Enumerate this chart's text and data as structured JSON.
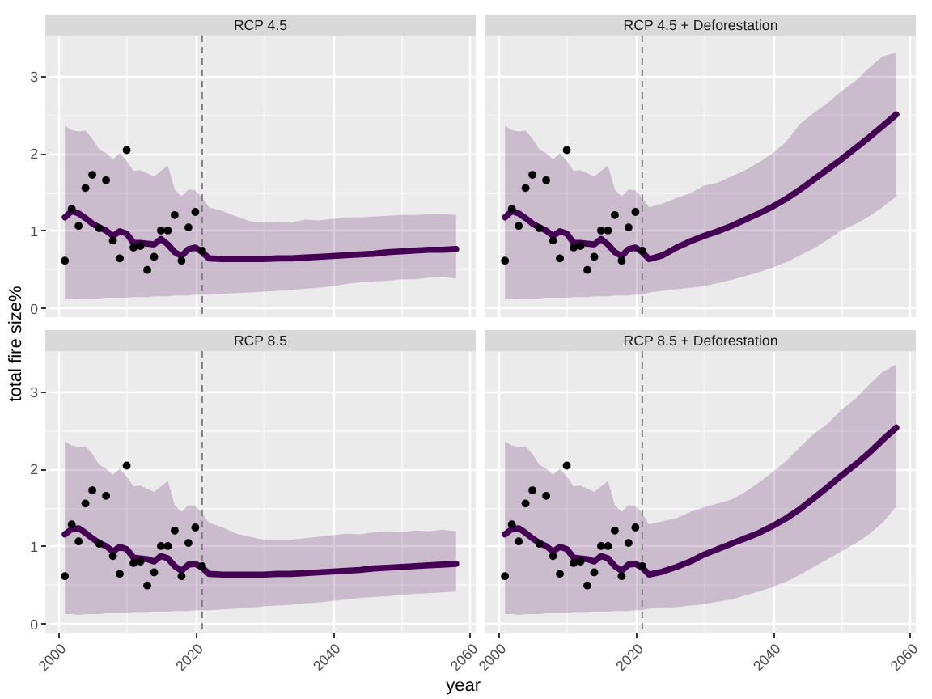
{
  "chart_data": [
    {
      "type": "line",
      "title": "RCP 4.5",
      "ylabel": "total fire size%",
      "xlim": [
        1998.15,
        2060.85
      ],
      "xticks": [
        2000,
        {
          "value": 2010,
          "label": null
        },
        2020,
        {
          "value": 2030,
          "label": null
        },
        2040,
        {
          "value": 2050,
          "label": null
        },
        2060
      ],
      "ylim": [
        -0.12,
        3.52
      ],
      "yticks": [
        0,
        {
          "value": 0.5,
          "label": null
        },
        1,
        {
          "value": 1.5,
          "label": null
        },
        2,
        {
          "value": 2.5,
          "label": null
        },
        3
      ],
      "grid": true,
      "tick_labels": "y",
      "ref_lines": [
        {
          "axis": "x",
          "value": 2021,
          "color": "#808080",
          "line_style": "dashed"
        }
      ],
      "series": [
        {
          "type": "line",
          "color": "#440154",
          "x": [
            2001,
            2002,
            2003,
            2004,
            2005,
            2006,
            2007,
            2008,
            2009,
            2010,
            2011,
            2012,
            2013,
            2014,
            2015,
            2016,
            2017,
            2018,
            2019,
            2020,
            2021,
            2022,
            2024,
            2026,
            2028,
            2030,
            2032,
            2034,
            2036,
            2038,
            2040,
            2042,
            2044,
            2046,
            2048,
            2050,
            2052,
            2054,
            2056,
            2058
          ],
          "values": [
            1.17,
            1.25,
            1.22,
            1.16,
            1.09,
            1.04,
            1.0,
            0.93,
            0.99,
            0.96,
            0.84,
            0.84,
            0.83,
            0.82,
            0.89,
            0.82,
            0.72,
            0.67,
            0.76,
            0.78,
            0.72,
            0.64,
            0.63,
            0.63,
            0.63,
            0.63,
            0.64,
            0.64,
            0.65,
            0.66,
            0.67,
            0.68,
            0.69,
            0.7,
            0.72,
            0.73,
            0.74,
            0.75,
            0.75,
            0.76
          ],
          "lower": [
            0.12,
            0.12,
            0.11,
            0.12,
            0.12,
            0.12,
            0.13,
            0.13,
            0.13,
            0.13,
            0.14,
            0.14,
            0.14,
            0.15,
            0.15,
            0.15,
            0.16,
            0.16,
            0.16,
            0.17,
            0.17,
            0.17,
            0.18,
            0.19,
            0.2,
            0.21,
            0.22,
            0.23,
            0.25,
            0.26,
            0.28,
            0.31,
            0.33,
            0.34,
            0.35,
            0.37,
            0.37,
            0.39,
            0.4,
            0.38
          ],
          "upper": [
            2.35,
            2.3,
            2.28,
            2.29,
            2.19,
            2.05,
            2.0,
            1.92,
            2.0,
            1.9,
            1.77,
            1.78,
            1.74,
            1.7,
            1.77,
            1.84,
            1.53,
            1.44,
            1.53,
            1.52,
            1.42,
            1.3,
            1.25,
            1.18,
            1.12,
            1.1,
            1.11,
            1.1,
            1.14,
            1.13,
            1.15,
            1.17,
            1.17,
            1.18,
            1.19,
            1.2,
            1.2,
            1.21,
            1.21,
            1.2
          ]
        },
        {
          "type": "scatter",
          "color": "#000000",
          "marker": "circle",
          "x": [
            2001,
            2002,
            2003,
            2004,
            2005,
            2006,
            2007,
            2008,
            2009,
            2010,
            2011,
            2012,
            2013,
            2014,
            2015,
            2016,
            2017,
            2018,
            2019,
            2020,
            2021
          ],
          "values": [
            0.61,
            1.28,
            1.06,
            1.55,
            1.72,
            1.03,
            1.65,
            0.87,
            0.64,
            2.04,
            0.78,
            0.8,
            0.49,
            0.66,
            1.0,
            1.0,
            1.2,
            0.61,
            1.04,
            1.24,
            0.74
          ]
        }
      ]
    },
    {
      "type": "line",
      "title": "RCP 4.5 + Deforestation",
      "xlim": [
        1998.15,
        2060.85
      ],
      "xticks": [
        2000,
        {
          "value": 2010,
          "label": null
        },
        2020,
        {
          "value": 2030,
          "label": null
        },
        2040,
        {
          "value": 2050,
          "label": null
        },
        2060
      ],
      "ylim": [
        -0.12,
        3.52
      ],
      "yticks": [
        0,
        {
          "value": 0.5,
          "label": null
        },
        1,
        {
          "value": 1.5,
          "label": null
        },
        2,
        {
          "value": 2.5,
          "label": null
        },
        3
      ],
      "grid": true,
      "tick_labels": false,
      "ref_lines": [
        {
          "axis": "x",
          "value": 2021,
          "color": "#808080",
          "line_style": "dashed"
        }
      ],
      "series": [
        {
          "type": "line",
          "color": "#440154",
          "x": [
            2001,
            2002,
            2003,
            2004,
            2005,
            2006,
            2007,
            2008,
            2009,
            2010,
            2011,
            2012,
            2013,
            2014,
            2015,
            2016,
            2017,
            2018,
            2019,
            2020,
            2021,
            2022,
            2024,
            2026,
            2028,
            2030,
            2032,
            2034,
            2036,
            2038,
            2040,
            2042,
            2044,
            2046,
            2048,
            2050,
            2052,
            2054,
            2056,
            2058
          ],
          "values": [
            1.17,
            1.25,
            1.22,
            1.16,
            1.09,
            1.04,
            1.0,
            0.93,
            0.99,
            0.96,
            0.84,
            0.84,
            0.83,
            0.82,
            0.89,
            0.82,
            0.72,
            0.67,
            0.76,
            0.78,
            0.72,
            0.63,
            0.68,
            0.78,
            0.86,
            0.93,
            0.99,
            1.06,
            1.14,
            1.22,
            1.31,
            1.41,
            1.53,
            1.66,
            1.79,
            1.92,
            2.06,
            2.2,
            2.35,
            2.5
          ],
          "lower": [
            0.12,
            0.12,
            0.11,
            0.12,
            0.12,
            0.12,
            0.13,
            0.13,
            0.13,
            0.13,
            0.14,
            0.14,
            0.14,
            0.15,
            0.15,
            0.15,
            0.16,
            0.16,
            0.16,
            0.17,
            0.17,
            0.2,
            0.22,
            0.24,
            0.26,
            0.28,
            0.32,
            0.36,
            0.41,
            0.46,
            0.52,
            0.59,
            0.68,
            0.77,
            0.88,
            1.0,
            1.08,
            1.18,
            1.3,
            1.44
          ],
          "upper": [
            2.35,
            2.3,
            2.28,
            2.29,
            2.19,
            2.05,
            2.0,
            1.92,
            2.0,
            1.9,
            1.77,
            1.78,
            1.74,
            1.7,
            1.77,
            1.84,
            1.53,
            1.44,
            1.53,
            1.52,
            1.42,
            1.3,
            1.35,
            1.42,
            1.48,
            1.58,
            1.62,
            1.7,
            1.78,
            1.88,
            2.0,
            2.15,
            2.38,
            2.52,
            2.65,
            2.8,
            2.93,
            3.1,
            3.25,
            3.3
          ]
        },
        {
          "type": "scatter",
          "color": "#000000",
          "marker": "circle",
          "x": [
            2001,
            2002,
            2003,
            2004,
            2005,
            2006,
            2007,
            2008,
            2009,
            2010,
            2011,
            2012,
            2013,
            2014,
            2015,
            2016,
            2017,
            2018,
            2019,
            2020,
            2021
          ],
          "values": [
            0.61,
            1.28,
            1.06,
            1.55,
            1.72,
            1.03,
            1.65,
            0.87,
            0.64,
            2.04,
            0.78,
            0.8,
            0.49,
            0.66,
            1.0,
            1.0,
            1.2,
            0.61,
            1.04,
            1.24,
            0.74
          ]
        }
      ]
    },
    {
      "type": "line",
      "title": "RCP 8.5",
      "xlabel": "year",
      "xlim": [
        1998.15,
        2060.85
      ],
      "xticks": [
        2000,
        {
          "value": 2010,
          "label": null
        },
        2020,
        {
          "value": 2030,
          "label": null
        },
        2040,
        {
          "value": 2050,
          "label": null
        },
        2060
      ],
      "ylim": [
        -0.12,
        3.52
      ],
      "yticks": [
        0,
        {
          "value": 0.5,
          "label": null
        },
        1,
        {
          "value": 1.5,
          "label": null
        },
        2,
        {
          "value": 2.5,
          "label": null
        },
        3
      ],
      "grid": true,
      "ref_lines": [
        {
          "axis": "x",
          "value": 2021,
          "color": "#808080",
          "line_style": "dashed"
        }
      ],
      "series": [
        {
          "type": "line",
          "color": "#440154",
          "x": [
            2001,
            2002,
            2003,
            2004,
            2005,
            2006,
            2007,
            2008,
            2009,
            2010,
            2011,
            2012,
            2013,
            2014,
            2015,
            2016,
            2017,
            2018,
            2019,
            2020,
            2021,
            2022,
            2024,
            2026,
            2028,
            2030,
            2032,
            2034,
            2036,
            2038,
            2040,
            2042,
            2044,
            2046,
            2048,
            2050,
            2052,
            2054,
            2056,
            2058
          ],
          "values": [
            1.15,
            1.22,
            1.23,
            1.17,
            1.1,
            1.04,
            1.0,
            0.93,
            0.99,
            0.96,
            0.85,
            0.84,
            0.83,
            0.8,
            0.87,
            0.84,
            0.74,
            0.68,
            0.76,
            0.77,
            0.72,
            0.64,
            0.63,
            0.63,
            0.63,
            0.63,
            0.64,
            0.64,
            0.65,
            0.66,
            0.67,
            0.68,
            0.69,
            0.71,
            0.72,
            0.73,
            0.74,
            0.75,
            0.76,
            0.77
          ],
          "lower": [
            0.12,
            0.12,
            0.11,
            0.12,
            0.12,
            0.12,
            0.13,
            0.13,
            0.13,
            0.13,
            0.14,
            0.14,
            0.14,
            0.15,
            0.15,
            0.15,
            0.16,
            0.16,
            0.16,
            0.17,
            0.17,
            0.17,
            0.18,
            0.19,
            0.2,
            0.22,
            0.23,
            0.24,
            0.26,
            0.27,
            0.29,
            0.31,
            0.33,
            0.34,
            0.35,
            0.37,
            0.38,
            0.39,
            0.4,
            0.41
          ],
          "upper": [
            2.35,
            2.3,
            2.28,
            2.29,
            2.19,
            2.05,
            2.0,
            1.92,
            2.0,
            1.9,
            1.77,
            1.78,
            1.74,
            1.7,
            1.77,
            1.84,
            1.53,
            1.44,
            1.53,
            1.52,
            1.42,
            1.3,
            1.24,
            1.16,
            1.12,
            1.08,
            1.08,
            1.08,
            1.1,
            1.12,
            1.14,
            1.16,
            1.15,
            1.18,
            1.19,
            1.18,
            1.2,
            1.19,
            1.21,
            1.19
          ]
        },
        {
          "type": "scatter",
          "color": "#000000",
          "marker": "circle",
          "x": [
            2001,
            2002,
            2003,
            2004,
            2005,
            2006,
            2007,
            2008,
            2009,
            2010,
            2011,
            2012,
            2013,
            2014,
            2015,
            2016,
            2017,
            2018,
            2019,
            2020,
            2021
          ],
          "values": [
            0.61,
            1.28,
            1.06,
            1.55,
            1.72,
            1.03,
            1.65,
            0.87,
            0.64,
            2.04,
            0.78,
            0.8,
            0.49,
            0.66,
            1.0,
            1.0,
            1.2,
            0.61,
            1.04,
            1.24,
            0.74
          ]
        }
      ]
    },
    {
      "type": "line",
      "title": "RCP 8.5 + Deforestation",
      "xlim": [
        1998.15,
        2060.85
      ],
      "xticks": [
        2000,
        {
          "value": 2010,
          "label": null
        },
        2020,
        {
          "value": 2030,
          "label": null
        },
        2040,
        {
          "value": 2050,
          "label": null
        },
        2060
      ],
      "ylim": [
        -0.12,
        3.52
      ],
      "yticks": [
        0,
        {
          "value": 0.5,
          "label": null
        },
        1,
        {
          "value": 1.5,
          "label": null
        },
        2,
        {
          "value": 2.5,
          "label": null
        },
        3
      ],
      "grid": true,
      "tick_labels": "x",
      "ref_lines": [
        {
          "axis": "x",
          "value": 2021,
          "color": "#808080",
          "line_style": "dashed"
        }
      ],
      "series": [
        {
          "type": "line",
          "color": "#440154",
          "x": [
            2001,
            2002,
            2003,
            2004,
            2005,
            2006,
            2007,
            2008,
            2009,
            2010,
            2011,
            2012,
            2013,
            2014,
            2015,
            2016,
            2017,
            2018,
            2019,
            2020,
            2021,
            2022,
            2024,
            2026,
            2028,
            2030,
            2032,
            2034,
            2036,
            2038,
            2040,
            2042,
            2044,
            2046,
            2048,
            2050,
            2052,
            2054,
            2056,
            2058
          ],
          "values": [
            1.15,
            1.22,
            1.23,
            1.17,
            1.1,
            1.04,
            1.0,
            0.93,
            0.99,
            0.96,
            0.85,
            0.84,
            0.83,
            0.8,
            0.87,
            0.84,
            0.74,
            0.68,
            0.76,
            0.77,
            0.72,
            0.63,
            0.67,
            0.73,
            0.8,
            0.89,
            0.96,
            1.03,
            1.1,
            1.17,
            1.26,
            1.36,
            1.48,
            1.62,
            1.76,
            1.91,
            2.05,
            2.2,
            2.37,
            2.53
          ],
          "lower": [
            0.12,
            0.12,
            0.11,
            0.12,
            0.12,
            0.12,
            0.13,
            0.13,
            0.13,
            0.13,
            0.14,
            0.14,
            0.14,
            0.15,
            0.15,
            0.15,
            0.16,
            0.16,
            0.16,
            0.17,
            0.17,
            0.19,
            0.2,
            0.21,
            0.23,
            0.25,
            0.28,
            0.31,
            0.36,
            0.41,
            0.47,
            0.54,
            0.63,
            0.73,
            0.83,
            0.93,
            1.03,
            1.15,
            1.3,
            1.51
          ],
          "upper": [
            2.35,
            2.3,
            2.28,
            2.29,
            2.19,
            2.05,
            2.0,
            1.92,
            2.0,
            1.9,
            1.77,
            1.78,
            1.74,
            1.7,
            1.77,
            1.84,
            1.53,
            1.44,
            1.53,
            1.52,
            1.42,
            1.28,
            1.32,
            1.36,
            1.44,
            1.5,
            1.55,
            1.6,
            1.7,
            1.82,
            1.96,
            2.1,
            2.28,
            2.45,
            2.58,
            2.76,
            2.9,
            3.08,
            3.25,
            3.35
          ]
        },
        {
          "type": "scatter",
          "color": "#000000",
          "marker": "circle",
          "x": [
            2001,
            2002,
            2003,
            2004,
            2005,
            2006,
            2007,
            2008,
            2009,
            2010,
            2011,
            2012,
            2013,
            2014,
            2015,
            2016,
            2017,
            2018,
            2019,
            2020,
            2021
          ],
          "values": [
            0.61,
            1.28,
            1.06,
            1.55,
            1.72,
            1.03,
            1.65,
            0.87,
            0.64,
            2.04,
            0.78,
            0.8,
            0.49,
            0.66,
            1.0,
            1.0,
            1.2,
            0.61,
            1.04,
            1.24,
            0.74
          ]
        }
      ]
    }
  ]
}
